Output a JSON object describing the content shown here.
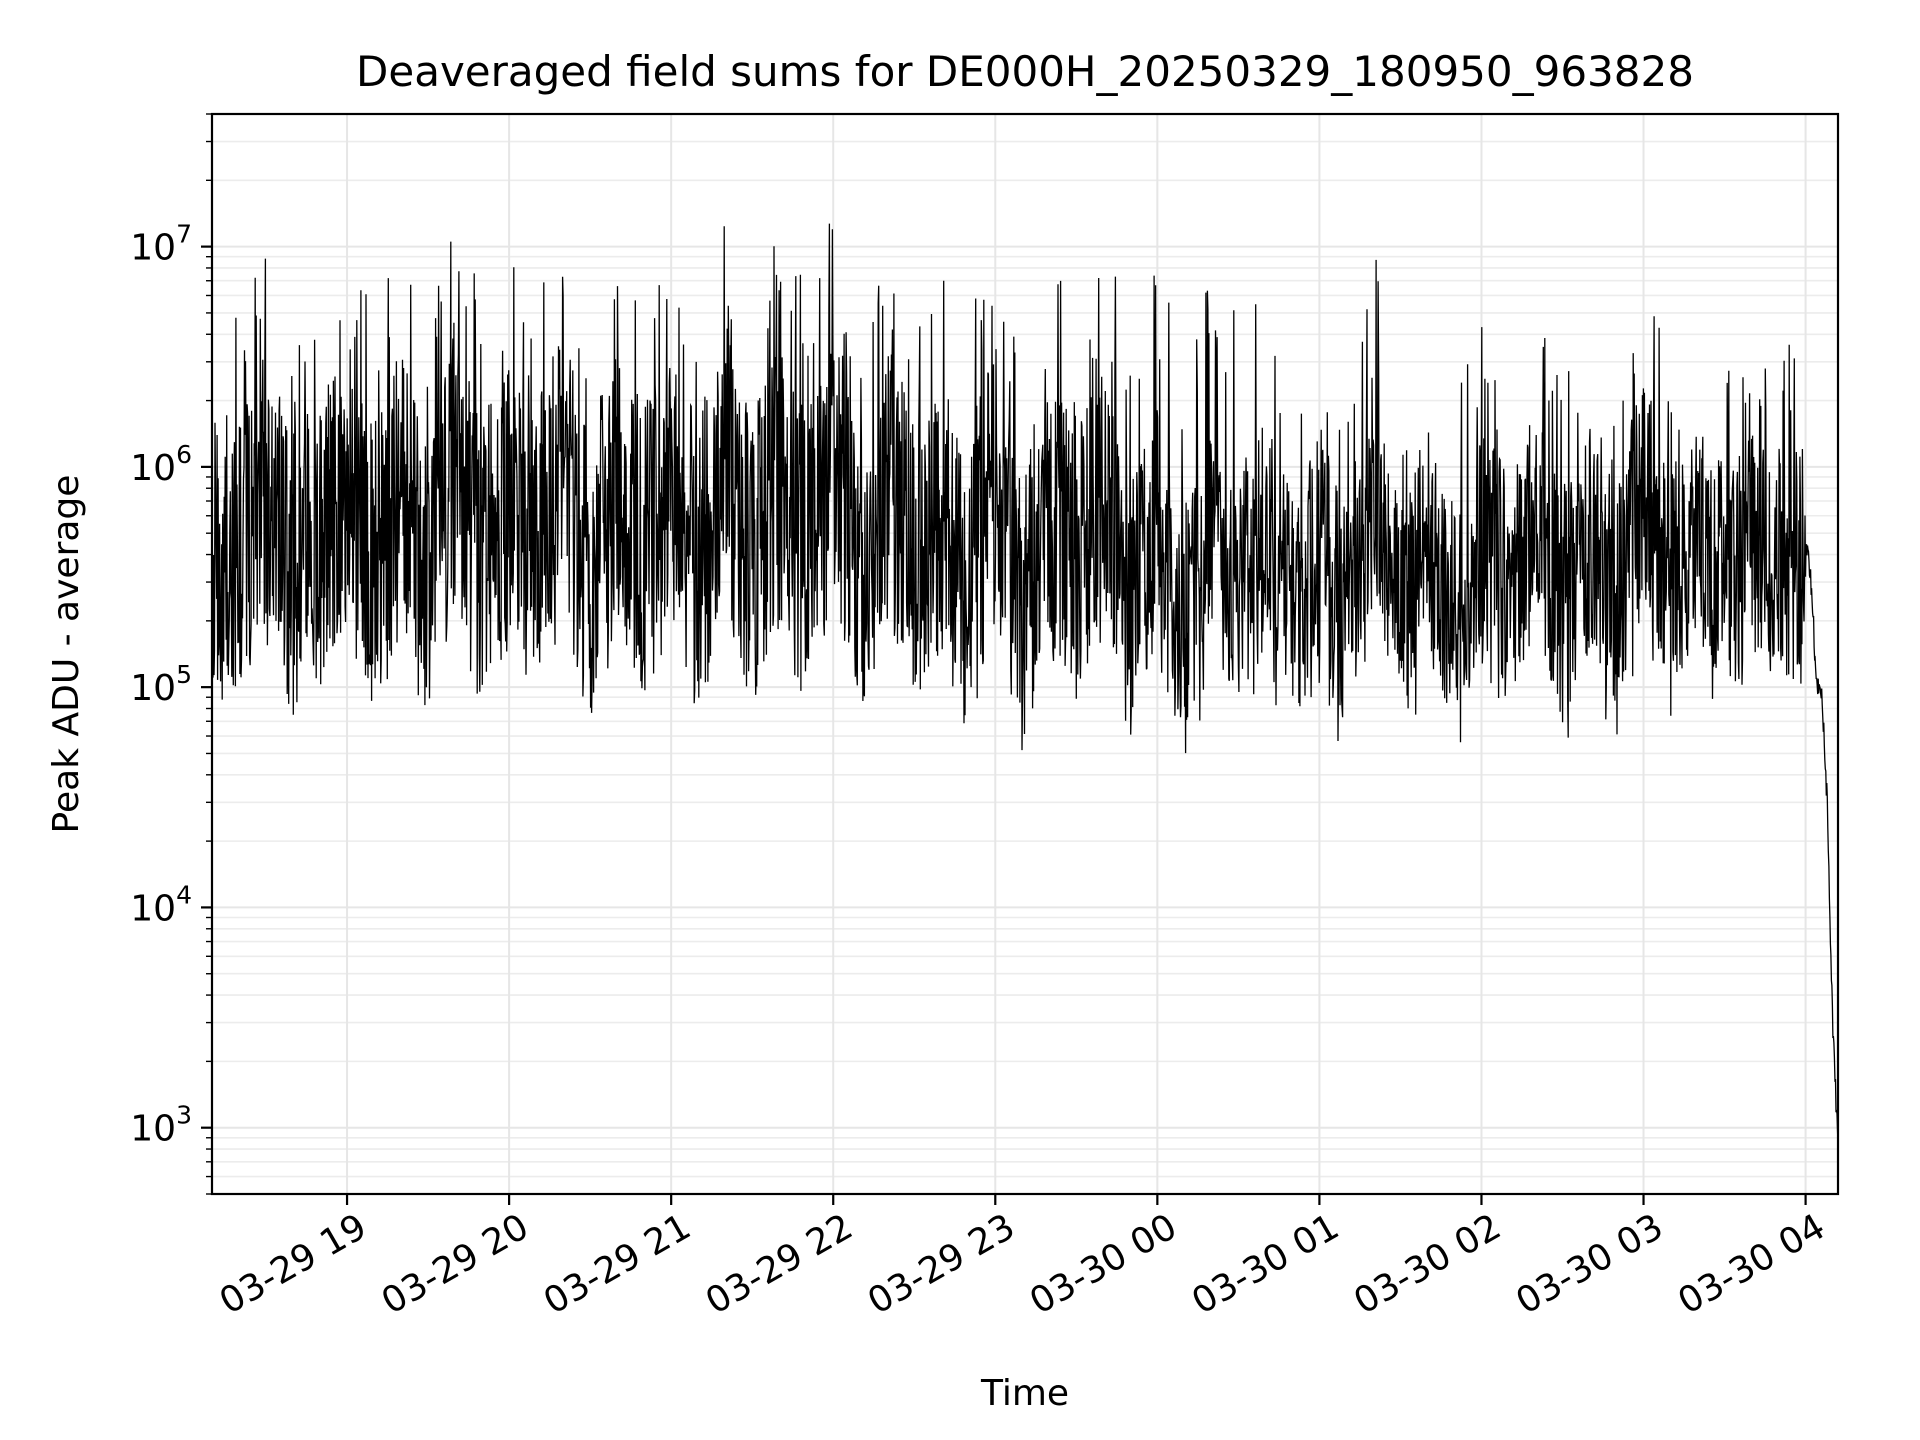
{
  "chart_data": {
    "type": "line",
    "title": "Deaveraged field sums for DE000H_20250329_180950_963828",
    "xlabel": "Time",
    "ylabel": "Peak ADU - average",
    "yscale": "log",
    "xlim": [
      "2025-03-29 18:10",
      "2025-03-30 04:12"
    ],
    "ylim": [
      500,
      40000000
    ],
    "grid": "on",
    "x_ticks": [
      "03-29 19",
      "03-29 20",
      "03-29 21",
      "03-29 22",
      "03-29 23",
      "03-30 00",
      "03-30 01",
      "03-30 02",
      "03-30 03",
      "03-30 04"
    ],
    "y_ticks": [
      {
        "value": 1000,
        "base": "10",
        "exp": "3"
      },
      {
        "value": 10000,
        "base": "10",
        "exp": "4"
      },
      {
        "value": 100000,
        "base": "10",
        "exp": "5"
      },
      {
        "value": 1000000,
        "base": "10",
        "exp": "6"
      },
      {
        "value": 10000000,
        "base": "10",
        "exp": "7"
      }
    ],
    "series": [
      {
        "color": "#000000",
        "x": [
          "2025-03-29 18:10",
          "2025-03-29 18:20",
          "2025-03-29 18:30",
          "2025-03-29 18:40",
          "2025-03-29 18:50",
          "2025-03-29 19:00",
          "2025-03-29 19:10",
          "2025-03-29 19:20",
          "2025-03-29 19:30",
          "2025-03-29 19:40",
          "2025-03-29 19:50",
          "2025-03-29 20:00",
          "2025-03-29 20:10",
          "2025-03-29 20:20",
          "2025-03-29 20:30",
          "2025-03-29 20:40",
          "2025-03-29 20:50",
          "2025-03-29 21:00",
          "2025-03-29 21:10",
          "2025-03-29 21:20",
          "2025-03-29 21:30",
          "2025-03-29 21:40",
          "2025-03-29 21:50",
          "2025-03-29 22:00",
          "2025-03-29 22:10",
          "2025-03-29 22:20",
          "2025-03-29 22:30",
          "2025-03-29 22:40",
          "2025-03-29 22:50",
          "2025-03-29 23:00",
          "2025-03-29 23:10",
          "2025-03-29 23:20",
          "2025-03-29 23:30",
          "2025-03-29 23:40",
          "2025-03-29 23:50",
          "2025-03-30 00:00",
          "2025-03-30 00:10",
          "2025-03-30 00:20",
          "2025-03-30 00:30",
          "2025-03-30 00:40",
          "2025-03-30 00:50",
          "2025-03-30 01:00",
          "2025-03-30 01:10",
          "2025-03-30 01:20",
          "2025-03-30 01:30",
          "2025-03-30 01:40",
          "2025-03-30 01:50",
          "2025-03-30 02:00",
          "2025-03-30 02:10",
          "2025-03-30 02:20",
          "2025-03-30 02:30",
          "2025-03-30 02:40",
          "2025-03-30 02:50",
          "2025-03-30 03:00",
          "2025-03-30 03:10",
          "2025-03-30 03:20",
          "2025-03-30 03:30",
          "2025-03-30 03:40",
          "2025-03-30 03:50",
          "2025-03-30 04:00",
          "2025-03-30 04:02",
          "2025-03-30 04:04",
          "2025-03-30 04:06",
          "2025-03-30 04:08",
          "2025-03-30 04:10",
          "2025-03-30 04:12"
        ],
        "values": [
          500000,
          600000,
          3000000,
          200000,
          600000,
          5000000,
          250000,
          4000000,
          150000,
          10000000,
          300000,
          2000000,
          400000,
          8000000,
          200000,
          5000000,
          500000,
          3000000,
          250000,
          9000000,
          300000,
          4000000,
          500000,
          15000000,
          200000,
          6000000,
          400000,
          2000000,
          150000,
          8000000,
          60000,
          3000000,
          300000,
          5000000,
          100000,
          1500000,
          50000,
          700000,
          200000,
          1000000,
          80000,
          600000,
          50000,
          10000000,
          100000,
          800000,
          60000,
          900000,
          150000,
          2000000,
          80000,
          900000,
          100000,
          5000000,
          300000,
          1200000,
          200000,
          800000,
          400000,
          500000,
          300000,
          110000,
          90000,
          30000,
          3000,
          800
        ]
      }
    ]
  }
}
